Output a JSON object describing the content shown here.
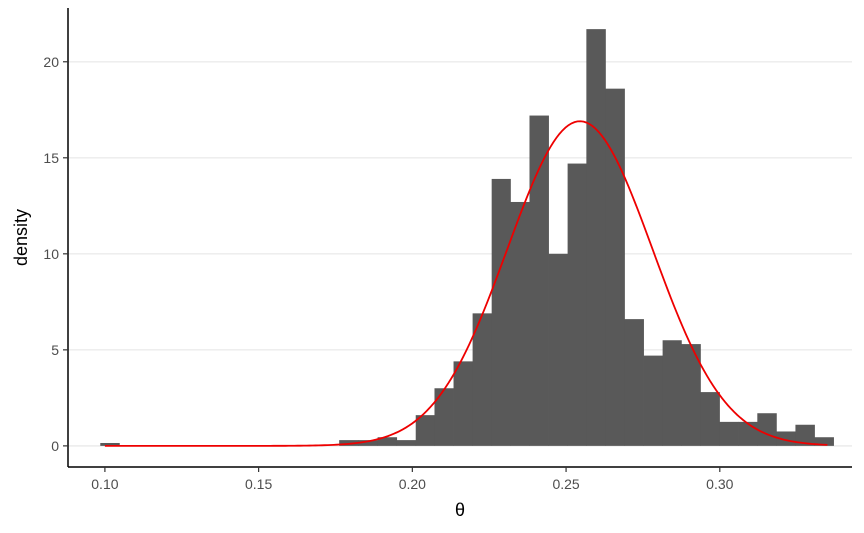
{
  "chart_data": {
    "type": "bar",
    "subtype": "histogram-with-density-curve",
    "title": "",
    "xlabel": "θ",
    "ylabel": "density",
    "xlim": [
      0.088,
      0.343
    ],
    "ylim": [
      -1.1,
      22.8
    ],
    "x_ticks": [
      0.1,
      0.15,
      0.2,
      0.25,
      0.3
    ],
    "x_tick_labels": [
      "0.10",
      "0.15",
      "0.20",
      "0.25",
      "0.30"
    ],
    "y_ticks": [
      0,
      5,
      10,
      15,
      20
    ],
    "y_tick_labels": [
      "0",
      "5",
      "10",
      "15",
      "20"
    ],
    "grid": "horizontal-major",
    "legend": "none",
    "bin_width": 0.00616,
    "bins": [
      {
        "x0": 0.0985,
        "x1": 0.1047,
        "density": 0.15
      },
      {
        "x0": 0.1762,
        "x1": 0.1825,
        "density": 0.3
      },
      {
        "x0": 0.1825,
        "x1": 0.1887,
        "density": 0.3
      },
      {
        "x0": 0.1887,
        "x1": 0.1949,
        "density": 0.45
      },
      {
        "x0": 0.1949,
        "x1": 0.2011,
        "density": 0.3
      },
      {
        "x0": 0.2011,
        "x1": 0.2072,
        "density": 1.6
      },
      {
        "x0": 0.2072,
        "x1": 0.2134,
        "density": 3.0
      },
      {
        "x0": 0.2134,
        "x1": 0.2196,
        "density": 4.4
      },
      {
        "x0": 0.2196,
        "x1": 0.2258,
        "density": 6.9
      },
      {
        "x0": 0.2258,
        "x1": 0.2319,
        "density": 13.9
      },
      {
        "x0": 0.2319,
        "x1": 0.2381,
        "density": 12.7
      },
      {
        "x0": 0.2381,
        "x1": 0.2443,
        "density": 17.2
      },
      {
        "x0": 0.2443,
        "x1": 0.2505,
        "density": 10.0
      },
      {
        "x0": 0.2505,
        "x1": 0.2566,
        "density": 14.7
      },
      {
        "x0": 0.2566,
        "x1": 0.2628,
        "density": 21.7
      },
      {
        "x0": 0.2628,
        "x1": 0.269,
        "density": 18.6
      },
      {
        "x0": 0.269,
        "x1": 0.2752,
        "density": 6.6
      },
      {
        "x0": 0.2752,
        "x1": 0.2814,
        "density": 4.7
      },
      {
        "x0": 0.2814,
        "x1": 0.2875,
        "density": 5.5
      },
      {
        "x0": 0.2875,
        "x1": 0.2937,
        "density": 5.3
      },
      {
        "x0": 0.2937,
        "x1": 0.2999,
        "density": 2.8
      },
      {
        "x0": 0.2999,
        "x1": 0.3061,
        "density": 1.25
      },
      {
        "x0": 0.3061,
        "x1": 0.3122,
        "density": 1.25
      },
      {
        "x0": 0.3122,
        "x1": 0.3184,
        "density": 1.7
      },
      {
        "x0": 0.3184,
        "x1": 0.3246,
        "density": 0.75
      },
      {
        "x0": 0.3246,
        "x1": 0.3308,
        "density": 1.1
      },
      {
        "x0": 0.3308,
        "x1": 0.337,
        "density": 0.45
      }
    ],
    "curve": {
      "kind": "normal-density",
      "mean": 0.2545,
      "sd": 0.0236,
      "x_range": [
        0.1,
        0.335
      ],
      "color": "#ee0000"
    },
    "bar_color": "#595959",
    "grid_color": "#ebebeb",
    "axis_color": "#000000"
  }
}
